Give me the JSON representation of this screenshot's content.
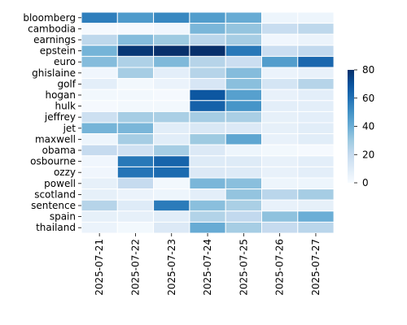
{
  "chart_data": {
    "type": "heatmap",
    "title": "",
    "xlabel": "",
    "ylabel": "",
    "rows": [
      "bloomberg",
      "cambodia",
      "earnings",
      "epstein",
      "euro",
      "ghislaine",
      "golf",
      "hogan",
      "hulk",
      "jeffrey",
      "jet",
      "maxwell",
      "obama",
      "osbourne",
      "ozzy",
      "powell",
      "scotland",
      "sentence",
      "spain",
      "thailand"
    ],
    "columns": [
      "2025-07-21",
      "2025-07-22",
      "2025-07-23",
      "2025-07-24",
      "2025-07-25",
      "2025-07-26",
      "2025-07-27"
    ],
    "values": [
      [
        56,
        47,
        53,
        46,
        41,
        4,
        4
      ],
      [
        1,
        1,
        3,
        37,
        32,
        19,
        22
      ],
      [
        22,
        35,
        30,
        23,
        28,
        3,
        5
      ],
      [
        38,
        78,
        80,
        80,
        58,
        18,
        21
      ],
      [
        35,
        26,
        36,
        24,
        18,
        46,
        63
      ],
      [
        3,
        28,
        8,
        24,
        35,
        5,
        6
      ],
      [
        8,
        2,
        5,
        13,
        34,
        14,
        24
      ],
      [
        2,
        2,
        1,
        68,
        45,
        6,
        8
      ],
      [
        1,
        2,
        2,
        65,
        49,
        8,
        8
      ],
      [
        17,
        28,
        27,
        28,
        27,
        7,
        8
      ],
      [
        38,
        37,
        9,
        12,
        11,
        7,
        9
      ],
      [
        4,
        28,
        9,
        30,
        43,
        6,
        9
      ],
      [
        20,
        16,
        28,
        11,
        4,
        2,
        1
      ],
      [
        3,
        58,
        64,
        10,
        10,
        6,
        8
      ],
      [
        3,
        59,
        62,
        11,
        10,
        6,
        8
      ],
      [
        7,
        20,
        2,
        37,
        34,
        4,
        4
      ],
      [
        7,
        5,
        4,
        8,
        32,
        23,
        28
      ],
      [
        24,
        10,
        57,
        34,
        27,
        6,
        7
      ],
      [
        7,
        7,
        9,
        25,
        21,
        33,
        40
      ],
      [
        5,
        2,
        11,
        41,
        28,
        20,
        23
      ]
    ],
    "colorbar": {
      "min": 0,
      "max": 80,
      "ticks": [
        0,
        20,
        40,
        60,
        80
      ]
    },
    "colormap": "Blues",
    "colors": {
      "low": "#f7fbff",
      "high": "#08306b"
    },
    "grid": false,
    "cell_border_color": "#ffffff"
  }
}
